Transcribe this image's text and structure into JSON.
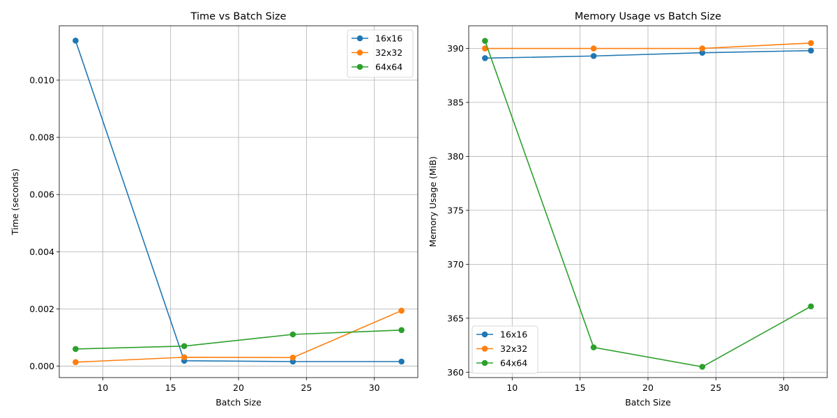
{
  "colors": {
    "16x16": "#1f77b4",
    "32x32": "#ff7f0e",
    "64x64": "#2ca02c"
  },
  "chart_data": [
    {
      "type": "line",
      "title": "Time vs Batch Size",
      "xlabel": "Batch Size",
      "ylabel": "Time (seconds)",
      "x": [
        8,
        16,
        24,
        32
      ],
      "xlim": [
        6.8,
        33.2
      ],
      "ylim": [
        -0.0004,
        0.0119
      ],
      "xticks": [
        10,
        15,
        20,
        25,
        30
      ],
      "xtick_labels": [
        "10",
        "15",
        "20",
        "25",
        "30"
      ],
      "yticks": [
        0.0,
        0.002,
        0.004,
        0.006,
        0.008,
        0.01
      ],
      "ytick_labels": [
        "0.000",
        "0.002",
        "0.004",
        "0.006",
        "0.008",
        "0.010"
      ],
      "grid": true,
      "legend_position": "top-right",
      "series": [
        {
          "name": "16x16",
          "values": [
            0.01138,
            0.00019,
            0.00016,
            0.00016
          ]
        },
        {
          "name": "32x32",
          "values": [
            0.00014,
            0.00031,
            0.0003,
            0.00194
          ]
        },
        {
          "name": "64x64",
          "values": [
            0.0006,
            0.0007,
            0.00111,
            0.00126
          ]
        }
      ]
    },
    {
      "type": "line",
      "title": "Memory Usage vs Batch Size",
      "xlabel": "Batch Size",
      "ylabel": "Memory Usage (MiB)",
      "x": [
        8,
        16,
        24,
        32
      ],
      "xlim": [
        6.8,
        33.2
      ],
      "ylim": [
        359.5,
        392.1
      ],
      "xticks": [
        10,
        15,
        20,
        25,
        30
      ],
      "xtick_labels": [
        "10",
        "15",
        "20",
        "25",
        "30"
      ],
      "yticks": [
        360,
        365,
        370,
        375,
        380,
        385,
        390
      ],
      "ytick_labels": [
        "360",
        "365",
        "370",
        "375",
        "380",
        "385",
        "390"
      ],
      "grid": true,
      "legend_position": "bottom-left",
      "series": [
        {
          "name": "16x16",
          "values": [
            389.1,
            389.3,
            389.6,
            389.8
          ]
        },
        {
          "name": "32x32",
          "values": [
            390.0,
            390.0,
            390.0,
            390.5
          ]
        },
        {
          "name": "64x64",
          "values": [
            390.7,
            362.3,
            360.5,
            366.1
          ]
        }
      ]
    }
  ]
}
